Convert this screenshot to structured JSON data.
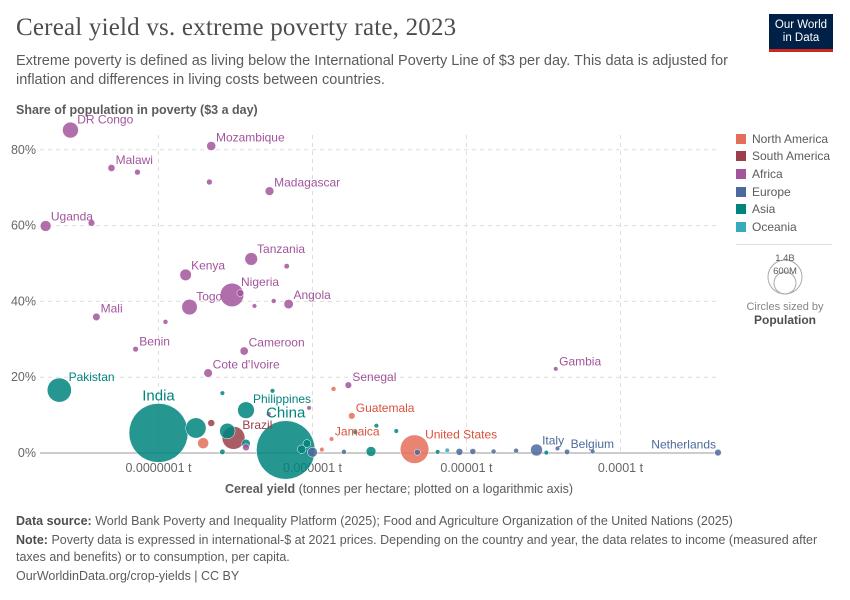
{
  "header": {
    "title": "Cereal yield vs. extreme poverty rate, 2023",
    "subtitle": "Extreme poverty is defined as living below the International Poverty Line of $3 per day. This data is adjusted for inflation and differences in living costs between countries.",
    "logo": "Our World in Data"
  },
  "chart_data": {
    "type": "scatter",
    "title": "Cereal yield vs. extreme poverty rate, 2023",
    "ylabel": "Share of population in poverty ($3 a day)",
    "xlabel_bold": "Cereal yield",
    "xlabel_rest": "(tonnes per hectare; plotted on a logarithmic axis)",
    "x_scale": "log",
    "xlim": [
      1.7e-08,
      0.00043
    ],
    "ylim": [
      0,
      85
    ],
    "x_ticks": [
      {
        "value": 1e-07,
        "label": "0.0000001 t"
      },
      {
        "value": 1e-06,
        "label": "0.000001 t"
      },
      {
        "value": 1e-05,
        "label": "0.00001 t"
      },
      {
        "value": 0.0001,
        "label": "0.0001 t"
      }
    ],
    "y_ticks": [
      {
        "value": 0,
        "label": "0%"
      },
      {
        "value": 20,
        "label": "20%"
      },
      {
        "value": 40,
        "label": "40%"
      },
      {
        "value": 60,
        "label": "60%"
      },
      {
        "value": 80,
        "label": "80%"
      }
    ],
    "grid": true,
    "legend_position": "right",
    "regions": [
      {
        "name": "North America",
        "color": "#E56E5A",
        "text": "#d9523c"
      },
      {
        "name": "South America",
        "color": "#9A3F4B",
        "text": "#9A3F4B"
      },
      {
        "name": "Africa",
        "color": "#A2559C",
        "text": "#a2559c"
      },
      {
        "name": "Europe",
        "color": "#4C6A9C",
        "text": "#4c6a9c"
      },
      {
        "name": "Asia",
        "color": "#00847E",
        "text": "#00847e"
      },
      {
        "name": "Oceania",
        "color": "#38AABA",
        "text": "#38aaba"
      }
    ],
    "size_legend": {
      "values": [
        "1.4B",
        "600M"
      ],
      "caption": "Circles sized by",
      "variable": "Population"
    },
    "points": [
      {
        "label": "DR Congo",
        "region": "Africa",
        "x": 2.68e-08,
        "y": 85.2,
        "pop": 105
      },
      {
        "label": "Mozambique",
        "region": "Africa",
        "x": 2.2e-07,
        "y": 81,
        "pop": 34
      },
      {
        "label": "Malawi",
        "region": "Africa",
        "x": 4.95e-08,
        "y": 75.2,
        "pop": 21
      },
      {
        "region": "Africa",
        "x": 7.3e-08,
        "y": 74.1,
        "pop": 14
      },
      {
        "region": "Africa",
        "x": 2.14e-07,
        "y": 71.5,
        "pop": 14
      },
      {
        "label": "Madagascar",
        "region": "Africa",
        "x": 5.26e-07,
        "y": 69.1,
        "pop": 31
      },
      {
        "label": "Uganda",
        "region": "Africa",
        "x": 1.85e-08,
        "y": 59.9,
        "pop": 48
      },
      {
        "region": "Africa",
        "x": 3.67e-08,
        "y": 60.7,
        "pop": 18
      },
      {
        "label": "Tanzania",
        "region": "Africa",
        "x": 4e-07,
        "y": 51.2,
        "pop": 67
      },
      {
        "region": "Africa",
        "x": 6.8e-07,
        "y": 49.3,
        "pop": 12
      },
      {
        "label": "Kenya",
        "region": "Africa",
        "x": 1.5e-07,
        "y": 47,
        "pop": 55
      },
      {
        "label": "Nigeria",
        "region": "Africa",
        "x": 3e-07,
        "y": 41.7,
        "pop": 227
      },
      {
        "region": "Africa",
        "x": 3.4e-07,
        "y": 42.2,
        "pop": 20
      },
      {
        "region": "Africa",
        "x": 5.6e-07,
        "y": 40.1,
        "pop": 10
      },
      {
        "label": "Angola",
        "region": "Africa",
        "x": 7e-07,
        "y": 39.3,
        "pop": 36
      },
      {
        "region": "Africa",
        "x": 4.2e-07,
        "y": 38.8,
        "pop": 8
      },
      {
        "label": "Togo",
        "region": "Africa",
        "x": 1.59e-07,
        "y": 38.5,
        "pop": 100
      },
      {
        "label": "Mali",
        "region": "Africa",
        "x": 3.95e-08,
        "y": 35.9,
        "pop": 23
      },
      {
        "region": "Africa",
        "x": 1.11e-07,
        "y": 34.6,
        "pop": 10
      },
      {
        "label": "Benin",
        "region": "Africa",
        "x": 7.1e-08,
        "y": 27.4,
        "pop": 13
      },
      {
        "label": "Cameroon",
        "region": "Africa",
        "x": 3.6e-07,
        "y": 26.9,
        "pop": 28
      },
      {
        "label": "Cote d'Ivoire",
        "region": "Africa",
        "x": 2.1e-07,
        "y": 21.1,
        "pop": 30
      },
      {
        "label": "Gambia",
        "region": "Africa",
        "x": 3.8e-05,
        "y": 22.2,
        "pop": 3
      },
      {
        "label": "Senegal",
        "region": "Africa",
        "x": 1.71e-06,
        "y": 17.9,
        "pop": 18
      },
      {
        "region": "North America",
        "x": 1.37e-06,
        "y": 16.9,
        "pop": 10
      },
      {
        "label": "Pakistan",
        "region": "Asia",
        "x": 2.27e-08,
        "y": 16.6,
        "pop": 240
      },
      {
        "region": "Asia",
        "x": 2.6e-07,
        "y": 15.8,
        "pop": 8
      },
      {
        "region": "Asia",
        "x": 5.5e-07,
        "y": 16.4,
        "pop": 9
      },
      {
        "label": "Philippines",
        "region": "Asia",
        "x": 3.7e-07,
        "y": 11.3,
        "pop": 115
      },
      {
        "region": "Africa",
        "x": 9.5e-07,
        "y": 11.9,
        "pop": 5
      },
      {
        "label": "Guatemala",
        "region": "North America",
        "x": 1.8e-06,
        "y": 9.8,
        "pop": 18
      },
      {
        "region": "Africa",
        "x": 5.2e-07,
        "y": 10.3,
        "pop": 5
      },
      {
        "label": "India",
        "region": "Asia",
        "x": 1e-07,
        "y": 5.3,
        "pop": 1430
      },
      {
        "region": "Asia",
        "x": 1.75e-07,
        "y": 6.6,
        "pop": 170
      },
      {
        "region": "South America",
        "x": 2.2e-07,
        "y": 7.9,
        "pop": 20
      },
      {
        "label": "Brazil",
        "region": "South America",
        "x": 3.07e-07,
        "y": 4.0,
        "pop": 216
      },
      {
        "region": "Asia",
        "x": 2.8e-07,
        "y": 5.8,
        "pop": 100
      },
      {
        "region": "North America",
        "x": 1.95e-07,
        "y": 2.6,
        "pop": 50
      },
      {
        "region": "Asia",
        "x": 3.7e-07,
        "y": 2.5,
        "pop": 30
      },
      {
        "region": "Africa",
        "x": 3.7e-07,
        "y": 1.5,
        "pop": 20
      },
      {
        "region": "Asia",
        "x": 2.6e-07,
        "y": 0.3,
        "pop": 12
      },
      {
        "label": "China",
        "region": "Asia",
        "x": 6.7e-07,
        "y": 0.8,
        "pop": 1410
      },
      {
        "region": "Asia",
        "x": 9.2e-07,
        "y": 2.5,
        "pop": 25
      },
      {
        "region": "Asia",
        "x": 8.5e-07,
        "y": 1.0,
        "pop": 30
      },
      {
        "region": "Europe",
        "x": 1e-06,
        "y": 0.2,
        "pop": 40
      },
      {
        "label": "Jamaica",
        "region": "North America",
        "x": 1.33e-06,
        "y": 3.7,
        "pop": 3
      },
      {
        "region": "North America",
        "x": 1.15e-06,
        "y": 0.9,
        "pop": 5
      },
      {
        "region": "Europe",
        "x": 1.6e-06,
        "y": 0.3,
        "pop": 10
      },
      {
        "region": "Asia",
        "x": 2.4e-06,
        "y": 0.4,
        "pop": 40
      },
      {
        "region": "Asia",
        "x": 1.9e-06,
        "y": 5.5,
        "pop": 4
      },
      {
        "region": "Asia",
        "x": 2.6e-06,
        "y": 7.2,
        "pop": 4
      },
      {
        "region": "Asia",
        "x": 3.5e-06,
        "y": 5.8,
        "pop": 4
      },
      {
        "label": "United States",
        "region": "North America",
        "x": 4.6e-06,
        "y": 1.0,
        "pop": 335
      },
      {
        "region": "Europe",
        "x": 4.8e-06,
        "y": 0.2,
        "pop": 15
      },
      {
        "region": "Asia",
        "x": 6.5e-06,
        "y": 0.3,
        "pop": 8
      },
      {
        "region": "Oceania",
        "x": 7.5e-06,
        "y": 0.7,
        "pop": 8
      },
      {
        "region": "Europe",
        "x": 9e-06,
        "y": 0.3,
        "pop": 20
      },
      {
        "region": "Europe",
        "x": 1.1e-05,
        "y": 0.4,
        "pop": 15
      },
      {
        "region": "Europe",
        "x": 1.5e-05,
        "y": 0.4,
        "pop": 10
      },
      {
        "region": "Europe",
        "x": 2.1e-05,
        "y": 0.6,
        "pop": 10
      },
      {
        "label": "Italy",
        "region": "Europe",
        "x": 2.85e-05,
        "y": 0.8,
        "pop": 59
      },
      {
        "region": "Asia",
        "x": 3.3e-05,
        "y": 0.1,
        "pop": 5
      },
      {
        "region": "Europe",
        "x": 3.9e-05,
        "y": 1.2,
        "pop": 4
      },
      {
        "label": "Belgium",
        "region": "Europe",
        "x": 4.5e-05,
        "y": 0.3,
        "pop": 12
      },
      {
        "region": "Europe",
        "x": 6.6e-05,
        "y": 0.4,
        "pop": 5
      },
      {
        "label": "Netherlands",
        "region": "Europe",
        "x": 0.00043,
        "y": 0.1,
        "pop": 18
      }
    ]
  },
  "footer": {
    "source_label": "Data source:",
    "source": "World Bank Poverty and Inequality Platform (2025); Food and Agriculture Organization of the United Nations (2025)",
    "note_label": "Note:",
    "note": "Poverty data is expressed in international-$ at 2021 prices. Depending on the country and year, the data relates to income (measured after taxes and benefits) or to consumption, per capita.",
    "credit": "OurWorldinData.org/crop-yields | CC BY"
  }
}
